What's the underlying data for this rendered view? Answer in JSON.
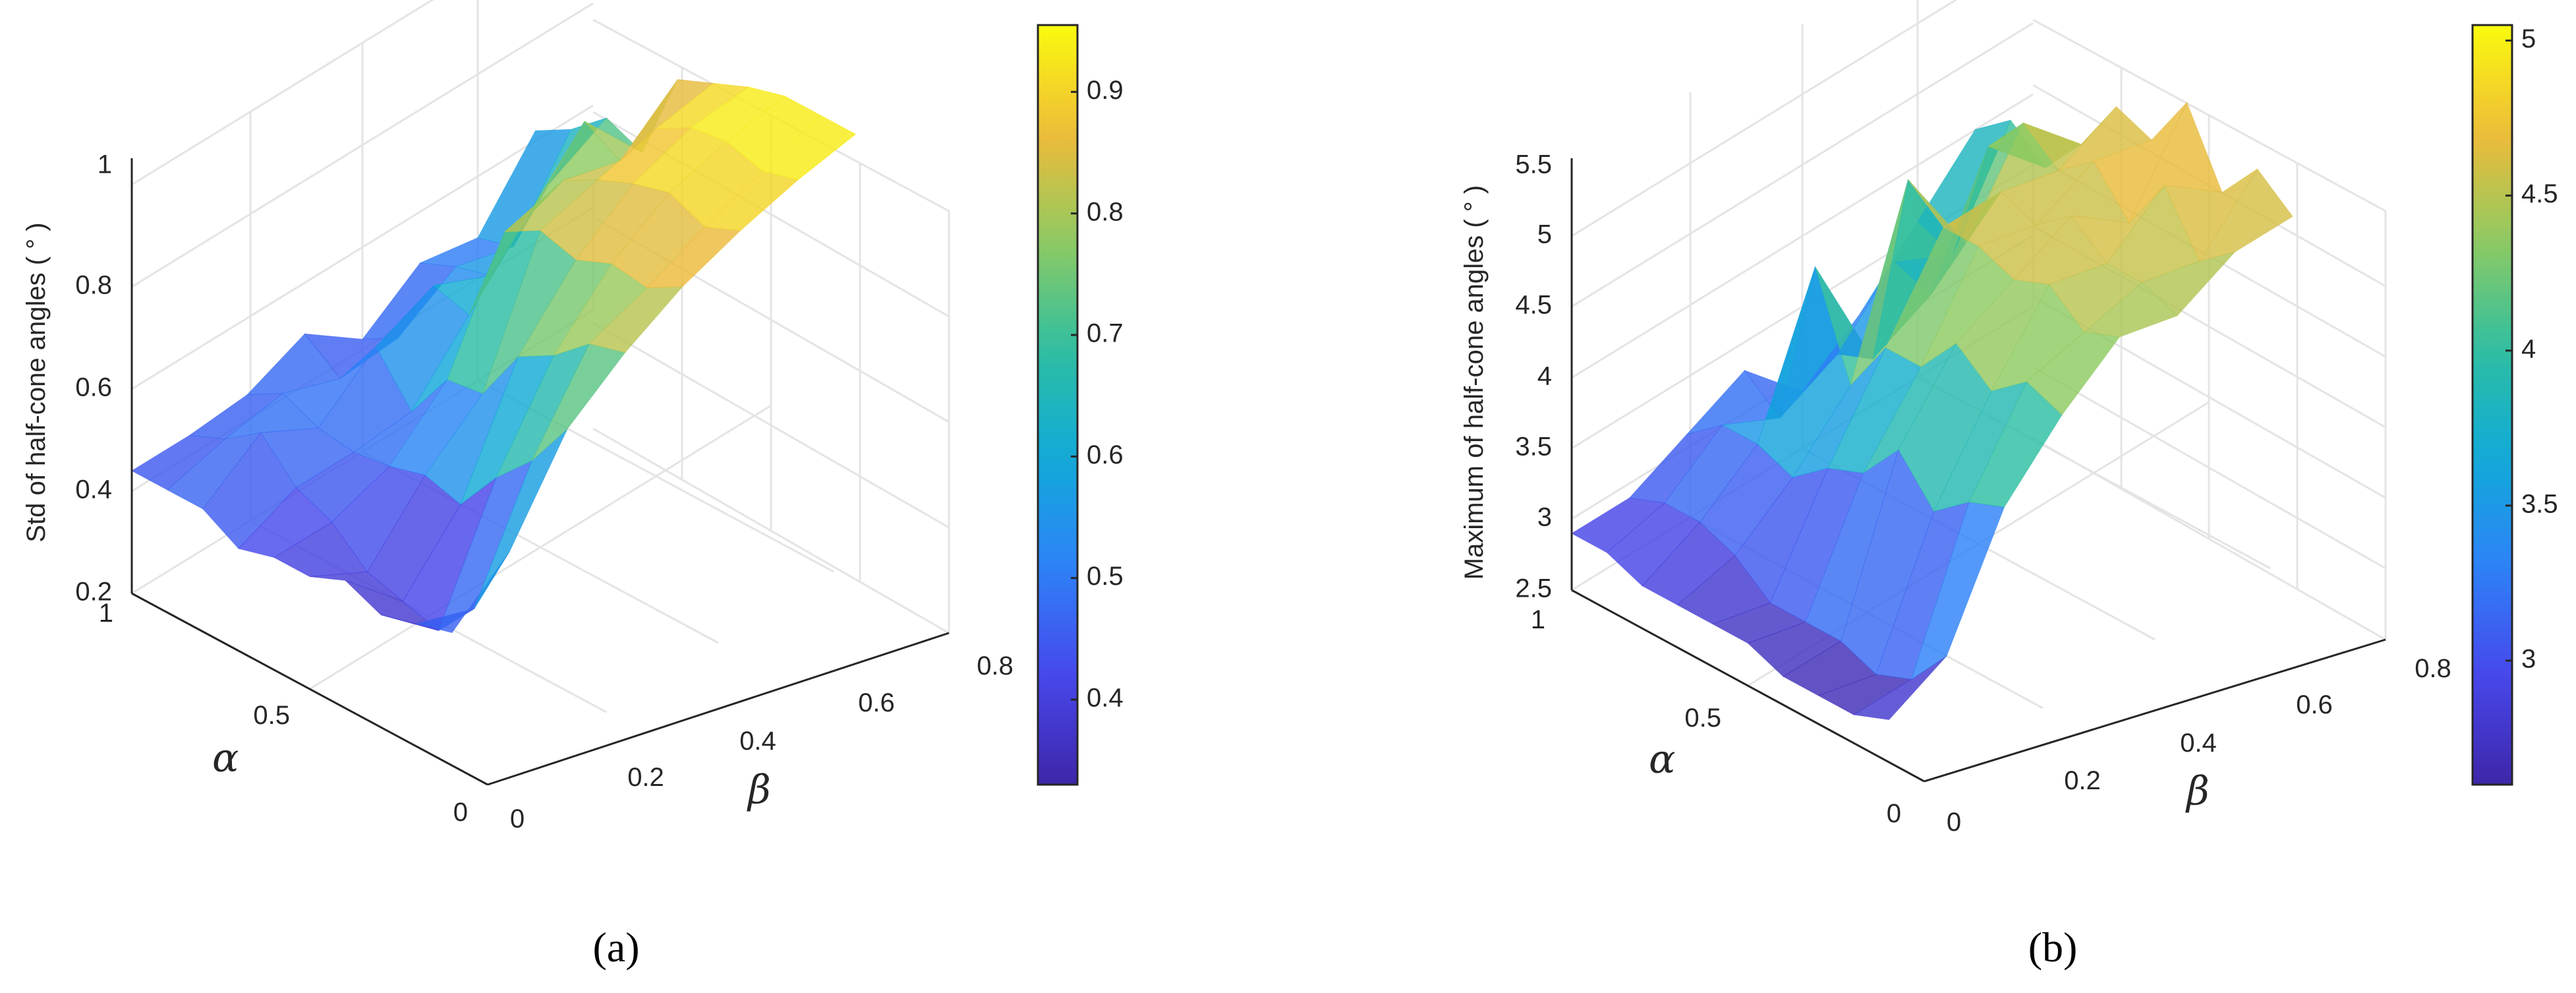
{
  "chart_data": [
    {
      "type": "surface",
      "panel_label": "(a)",
      "zlabel": "Std of half-cone angles ( ° )",
      "alpha_label": "α",
      "beta_label": "β",
      "alpha_range": [
        0,
        1
      ],
      "beta_range": [
        0,
        0.8
      ],
      "zlim": [
        0.2,
        1
      ],
      "alpha_ticks": [
        "0",
        "0.5",
        "1"
      ],
      "beta_ticks": [
        "0",
        "0.2",
        "0.4",
        "0.6",
        "0.8"
      ],
      "z_ticks": [
        "0.2",
        "0.4",
        "0.6",
        "0.8",
        "1"
      ],
      "colorbar": {
        "range": [
          0.33,
          0.955
        ],
        "ticks": [
          "0.4",
          "0.5",
          "0.6",
          "0.7",
          "0.8",
          "0.9"
        ],
        "values": [
          0.4,
          0.5,
          0.6,
          0.7,
          0.8,
          0.9
        ]
      },
      "alpha": [
        1.0,
        0.9,
        0.8,
        0.7,
        0.6,
        0.5,
        0.4,
        0.3,
        0.2,
        0.1
      ],
      "beta": [
        0.0,
        0.1,
        0.2,
        0.3,
        0.4,
        0.5,
        0.6,
        0.7
      ],
      "z": [
        [
          0.44,
          0.44,
          0.45,
          0.5,
          0.42,
          0.5,
          0.48,
          0.62
        ],
        [
          0.44,
          0.47,
          0.49,
          0.45,
          0.46,
          0.53,
          0.5,
          0.66
        ],
        [
          0.44,
          0.52,
          0.46,
          0.55,
          0.6,
          0.55,
          0.66,
          0.72
        ],
        [
          0.4,
          0.45,
          0.45,
          0.46,
          0.58,
          0.7,
          0.82,
          0.69
        ],
        [
          0.42,
          0.42,
          0.46,
          0.56,
          0.78,
          0.81,
          0.78,
          0.87
        ],
        [
          0.42,
          0.36,
          0.48,
          0.57,
          0.82,
          0.85,
          0.88,
          0.9
        ],
        [
          0.45,
          0.34,
          0.46,
          0.68,
          0.8,
          0.88,
          0.92,
          0.93
        ],
        [
          0.42,
          0.32,
          0.55,
          0.72,
          0.83,
          0.9,
          0.93,
          0.95
        ],
        [
          0.44,
          0.4,
          0.62,
          0.78,
          0.82,
          0.87,
          0.91,
          0.95
        ],
        [
          0.46,
          0.55,
          0.72,
          0.8,
          0.86,
          0.9,
          0.93,
          0.95
        ]
      ]
    },
    {
      "type": "surface",
      "panel_label": "(b)",
      "zlabel": "Maximum of half-cone angles ( ° )",
      "alpha_label": "α",
      "beta_label": "β",
      "alpha_range": [
        0,
        1
      ],
      "beta_range": [
        0,
        0.8
      ],
      "zlim": [
        2.5,
        5.5
      ],
      "alpha_ticks": [
        "0",
        "0.5",
        "1"
      ],
      "beta_ticks": [
        "0",
        "0.2",
        "0.4",
        "0.6",
        "0.8"
      ],
      "z_ticks": [
        "2.5",
        "3",
        "3.5",
        "4",
        "4.5",
        "5",
        "5.5"
      ],
      "colorbar": {
        "range": [
          2.6,
          5.05
        ],
        "ticks": [
          "3",
          "3.5",
          "4",
          "4.5",
          "5"
        ],
        "values": [
          3,
          3.5,
          4,
          4.5,
          5
        ]
      },
      "alpha": [
        1.0,
        0.9,
        0.8,
        0.7,
        0.6,
        0.5,
        0.4,
        0.3,
        0.2,
        0.1
      ],
      "beta": [
        0.0,
        0.1,
        0.2,
        0.3,
        0.4,
        0.5,
        0.6,
        0.7
      ],
      "z": [
        [
          2.9,
          2.9,
          3.1,
          3.3,
          2.9,
          3.2,
          3.6,
          4.0
        ],
        [
          2.9,
          3.0,
          3.3,
          3.1,
          3.3,
          3.7,
          3.5,
          4.2
        ],
        [
          2.8,
          3.0,
          3.3,
          4.3,
          3.4,
          3.6,
          4.4,
          4.0
        ],
        [
          2.8,
          2.9,
          3.2,
          3.6,
          4.8,
          4.1,
          4.7,
          4.3
        ],
        [
          2.8,
          2.7,
          3.4,
          4.0,
          4.6,
          4.6,
          4.5,
          4.7
        ],
        [
          2.8,
          2.7,
          3.5,
          4.0,
          4.6,
          4.5,
          4.7,
          4.6
        ],
        [
          2.7,
          2.7,
          3.8,
          4.3,
          4.5,
          4.7,
          4.4,
          5.0
        ],
        [
          2.7,
          2.6,
          3.5,
          4.1,
          4.6,
          4.5,
          4.8,
          4.5
        ],
        [
          2.7,
          2.7,
          3.7,
          4.3,
          4.4,
          4.5,
          4.4,
          4.8
        ],
        [
          2.8,
          3.0,
          3.8,
          4.2,
          4.5,
          4.4,
          4.6,
          4.6
        ]
      ]
    }
  ]
}
